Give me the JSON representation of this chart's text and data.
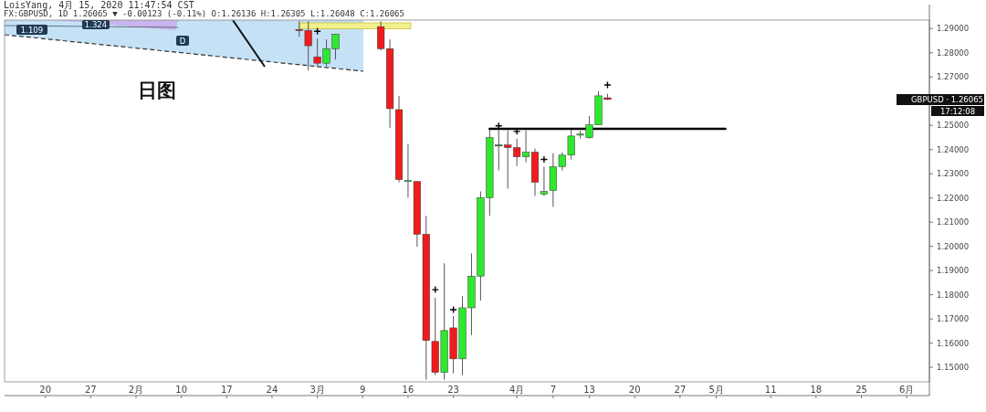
{
  "chart_data": {
    "type": "candlestick",
    "title": "日图",
    "annotations": [
      "LoisYang, 4月 15, 2020 11:47:54 CST",
      "FX:GBPUSD, 1D 1.26065 ▼ -0.00123 (-0.11%) O:1.26136 H:1.26305 L:1.26048 C:1.26065",
      "1.109",
      "1.324",
      "D",
      "GBPUSD · 1.26065",
      "17:12:08"
    ],
    "categories": [
      null,
      null,
      null,
      null,
      "20",
      null,
      null,
      null,
      null,
      "27",
      null,
      null,
      null,
      null,
      "2月",
      null,
      null,
      null,
      null,
      "10",
      null,
      null,
      null,
      null,
      "17",
      null,
      null,
      null,
      null,
      "24",
      null,
      null,
      null,
      null,
      "3月",
      null,
      null,
      null,
      null,
      "9",
      null,
      null,
      null,
      null,
      "16",
      null,
      null,
      null,
      null,
      "23",
      null,
      null,
      null,
      null,
      null,
      null,
      "4月",
      null,
      null,
      null,
      "7",
      null,
      null,
      null,
      "13",
      null,
      null,
      null,
      null,
      "20",
      null,
      null,
      null,
      null,
      "27",
      null,
      null,
      null,
      "5月",
      null,
      null,
      null,
      null,
      null,
      "11",
      null,
      null,
      null,
      null,
      "18",
      null,
      null,
      null,
      null,
      "25",
      null,
      null,
      null,
      null,
      "6月",
      null,
      null
    ],
    "ylim": [
      1.144,
      1.2935
    ],
    "yticks": [
      {
        "value": 1.15,
        "label": "1.15000"
      },
      {
        "value": 1.16,
        "label": "1.16000"
      },
      {
        "value": 1.17,
        "label": "1.17000"
      },
      {
        "value": 1.18,
        "label": "1.18000"
      },
      {
        "value": 1.19,
        "label": "1.19000"
      },
      {
        "value": 1.2,
        "label": "1.20000"
      },
      {
        "value": 1.21,
        "label": "1.21000"
      },
      {
        "value": 1.22,
        "label": "1.22000"
      },
      {
        "value": 1.23,
        "label": "1.23000"
      },
      {
        "value": 1.24,
        "label": "1.24000"
      },
      {
        "value": 1.25,
        "label": "1.25000"
      },
      {
        "value": 1.27,
        "label": "1.27000"
      },
      {
        "value": 1.28,
        "label": "1.28000"
      },
      {
        "value": 1.29,
        "label": "1.29000"
      }
    ],
    "series": [
      {
        "type": "line",
        "color": "#000000",
        "line_style": "solid",
        "values": [
          null,
          null,
          null,
          null,
          null,
          null,
          null,
          null,
          null,
          null,
          null,
          null,
          null,
          null,
          null,
          null,
          null,
          null,
          null,
          null,
          null,
          null,
          null,
          null,
          null,
          null,
          null,
          null,
          null,
          null,
          null,
          null,
          null,
          null,
          null,
          null,
          null,
          null,
          null,
          null,
          null,
          null,
          null,
          null,
          null,
          null,
          null,
          null,
          null,
          null,
          null,
          null,
          null,
          1.2486,
          1.2486,
          1.2486,
          1.2486,
          1.2486,
          1.2486,
          1.2486,
          1.2486,
          1.2486,
          1.2486,
          1.2486,
          1.2486,
          1.2486,
          1.2486,
          1.2486,
          1.2486,
          1.2486,
          1.2486,
          1.2486,
          1.2486,
          1.2486,
          1.2486,
          1.2486,
          1.2486,
          1.2486,
          1.2486,
          1.2486,
          null,
          null,
          null,
          null,
          null,
          null,
          null,
          null,
          null,
          null,
          null,
          null,
          null,
          null,
          null,
          null,
          null,
          null,
          null,
          null,
          null,
          null
        ]
      },
      {
        "type": "scatter",
        "color": "#000000",
        "marker": "cross",
        "values": [
          null,
          null,
          null,
          null,
          null,
          null,
          null,
          null,
          null,
          null,
          null,
          null,
          null,
          null,
          null,
          null,
          null,
          null,
          null,
          null,
          null,
          null,
          null,
          null,
          null,
          null,
          null,
          null,
          null,
          null,
          null,
          null,
          null,
          null,
          1.2889,
          null,
          null,
          null,
          null,
          null,
          null,
          null,
          null,
          null,
          null,
          null,
          null,
          1.1821,
          null,
          1.1738,
          null,
          null,
          null,
          null,
          1.2498,
          null,
          1.2475,
          null,
          null,
          1.2359,
          null,
          null,
          null,
          null,
          null,
          null,
          1.2667,
          null,
          null,
          null,
          null,
          null,
          null,
          null,
          null,
          null,
          null,
          null,
          null,
          null,
          null,
          null,
          null,
          null,
          null,
          null,
          null,
          null,
          null,
          null,
          null,
          null,
          null,
          null,
          null,
          null,
          null,
          null,
          null,
          null,
          null,
          null
        ]
      },
      {
        "ohlc": [
          null,
          null,
          null,
          null,
          null,
          null,
          null,
          null,
          null,
          null,
          null,
          null,
          null,
          null,
          null,
          null,
          null,
          null,
          null,
          null,
          null,
          null,
          null,
          null,
          null,
          null,
          null,
          null,
          null,
          null,
          null,
          null,
          [
            1.2896,
            1.293,
            1.2866,
            1.2892
          ],
          [
            1.2892,
            1.293,
            1.2727,
            1.2829
          ],
          [
            1.2783,
            1.2859,
            1.2746,
            1.2757
          ],
          [
            1.2757,
            1.2855,
            1.2746,
            1.2817
          ],
          [
            1.2817,
            1.2877,
            1.2772,
            1.2877
          ],
          null,
          null,
          null,
          null,
          [
            1.2908,
            1.293,
            1.281,
            1.2817
          ],
          [
            1.2817,
            1.2855,
            1.249,
            1.2569
          ],
          [
            1.2565,
            1.2622,
            1.2265,
            1.2276
          ],
          [
            1.2268,
            1.2423,
            1.2201,
            1.2272
          ],
          [
            1.2268,
            1.2268,
            1.1998,
            1.205
          ],
          [
            1.205,
            1.2126,
            1.1449,
            1.1611
          ],
          [
            1.1607,
            1.1787,
            1.1468,
            1.1479
          ],
          [
            1.1479,
            1.193,
            1.1449,
            1.1652
          ],
          [
            1.1663,
            1.1712,
            1.1475,
            1.1535
          ],
          [
            1.1535,
            1.1795,
            1.1468,
            1.1746
          ],
          [
            1.1746,
            1.1971,
            1.1633,
            1.1877
          ],
          [
            1.1877,
            1.2227,
            1.1776,
            1.2201
          ],
          [
            1.2201,
            1.2483,
            1.2126,
            1.2449
          ],
          [
            1.2419,
            1.2483,
            1.2314,
            1.2419
          ],
          [
            1.2419,
            1.2479,
            1.2238,
            1.2408
          ],
          [
            1.2408,
            1.2445,
            1.2332,
            1.237
          ],
          [
            1.237,
            1.2479,
            1.2347,
            1.2389
          ],
          [
            1.2389,
            1.2404,
            1.2208,
            1.2265
          ],
          [
            1.2216,
            1.2329,
            1.2208,
            1.2227
          ],
          [
            1.2231,
            1.2385,
            1.2163,
            1.2329
          ],
          [
            1.2329,
            1.2389,
            1.2314,
            1.2377
          ],
          [
            1.2377,
            1.2483,
            1.2359,
            1.2456
          ],
          [
            1.246,
            1.2479,
            1.2445,
            1.2464
          ],
          [
            1.2449,
            1.2539,
            1.2445,
            1.2502
          ],
          [
            1.2502,
            1.2641,
            1.2502,
            1.2622
          ],
          [
            1.2614,
            1.2631,
            1.2605,
            1.2607
          ],
          null,
          null,
          null,
          null,
          null,
          null,
          null,
          null,
          null,
          null,
          null,
          null,
          null,
          null,
          null,
          null,
          null,
          null,
          null,
          null,
          null,
          null,
          null,
          null,
          null,
          null,
          null,
          null,
          null,
          null,
          null,
          null,
          null,
          null,
          null
        ],
        "colors": [
          null,
          null,
          null,
          null,
          null,
          null,
          null,
          null,
          null,
          null,
          null,
          null,
          null,
          null,
          null,
          null,
          null,
          null,
          null,
          null,
          null,
          null,
          null,
          null,
          null,
          null,
          null,
          null,
          null,
          null,
          null,
          null,
          "#f01c1c",
          "#f01c1c",
          "#f01c1c",
          "#2ee82e",
          "#2ee82e",
          null,
          null,
          null,
          null,
          "#f01c1c",
          "#f01c1c",
          "#f01c1c",
          "#2ee82e",
          "#f01c1c",
          "#f01c1c",
          "#f01c1c",
          "#2ee82e",
          "#f01c1c",
          "#2ee82e",
          "#2ee82e",
          "#2ee82e",
          "#2ee82e",
          "#2e8b2e",
          "#f01c1c",
          "#f01c1c",
          "#2ee82e",
          "#f01c1c",
          "#2ee82e",
          "#2ee82e",
          "#2ee82e",
          "#2ee82e",
          "#2ee82e",
          "#2ee82e",
          "#2ee82e",
          "#f01c1c",
          null,
          null,
          null,
          null,
          null,
          null,
          null,
          null,
          null,
          null,
          null,
          null,
          null,
          null,
          null,
          null,
          null,
          null,
          null,
          null,
          null,
          null,
          null,
          null,
          null,
          null,
          null,
          null,
          null,
          null,
          null,
          null,
          null,
          null,
          null
        ]
      }
    ]
  }
}
